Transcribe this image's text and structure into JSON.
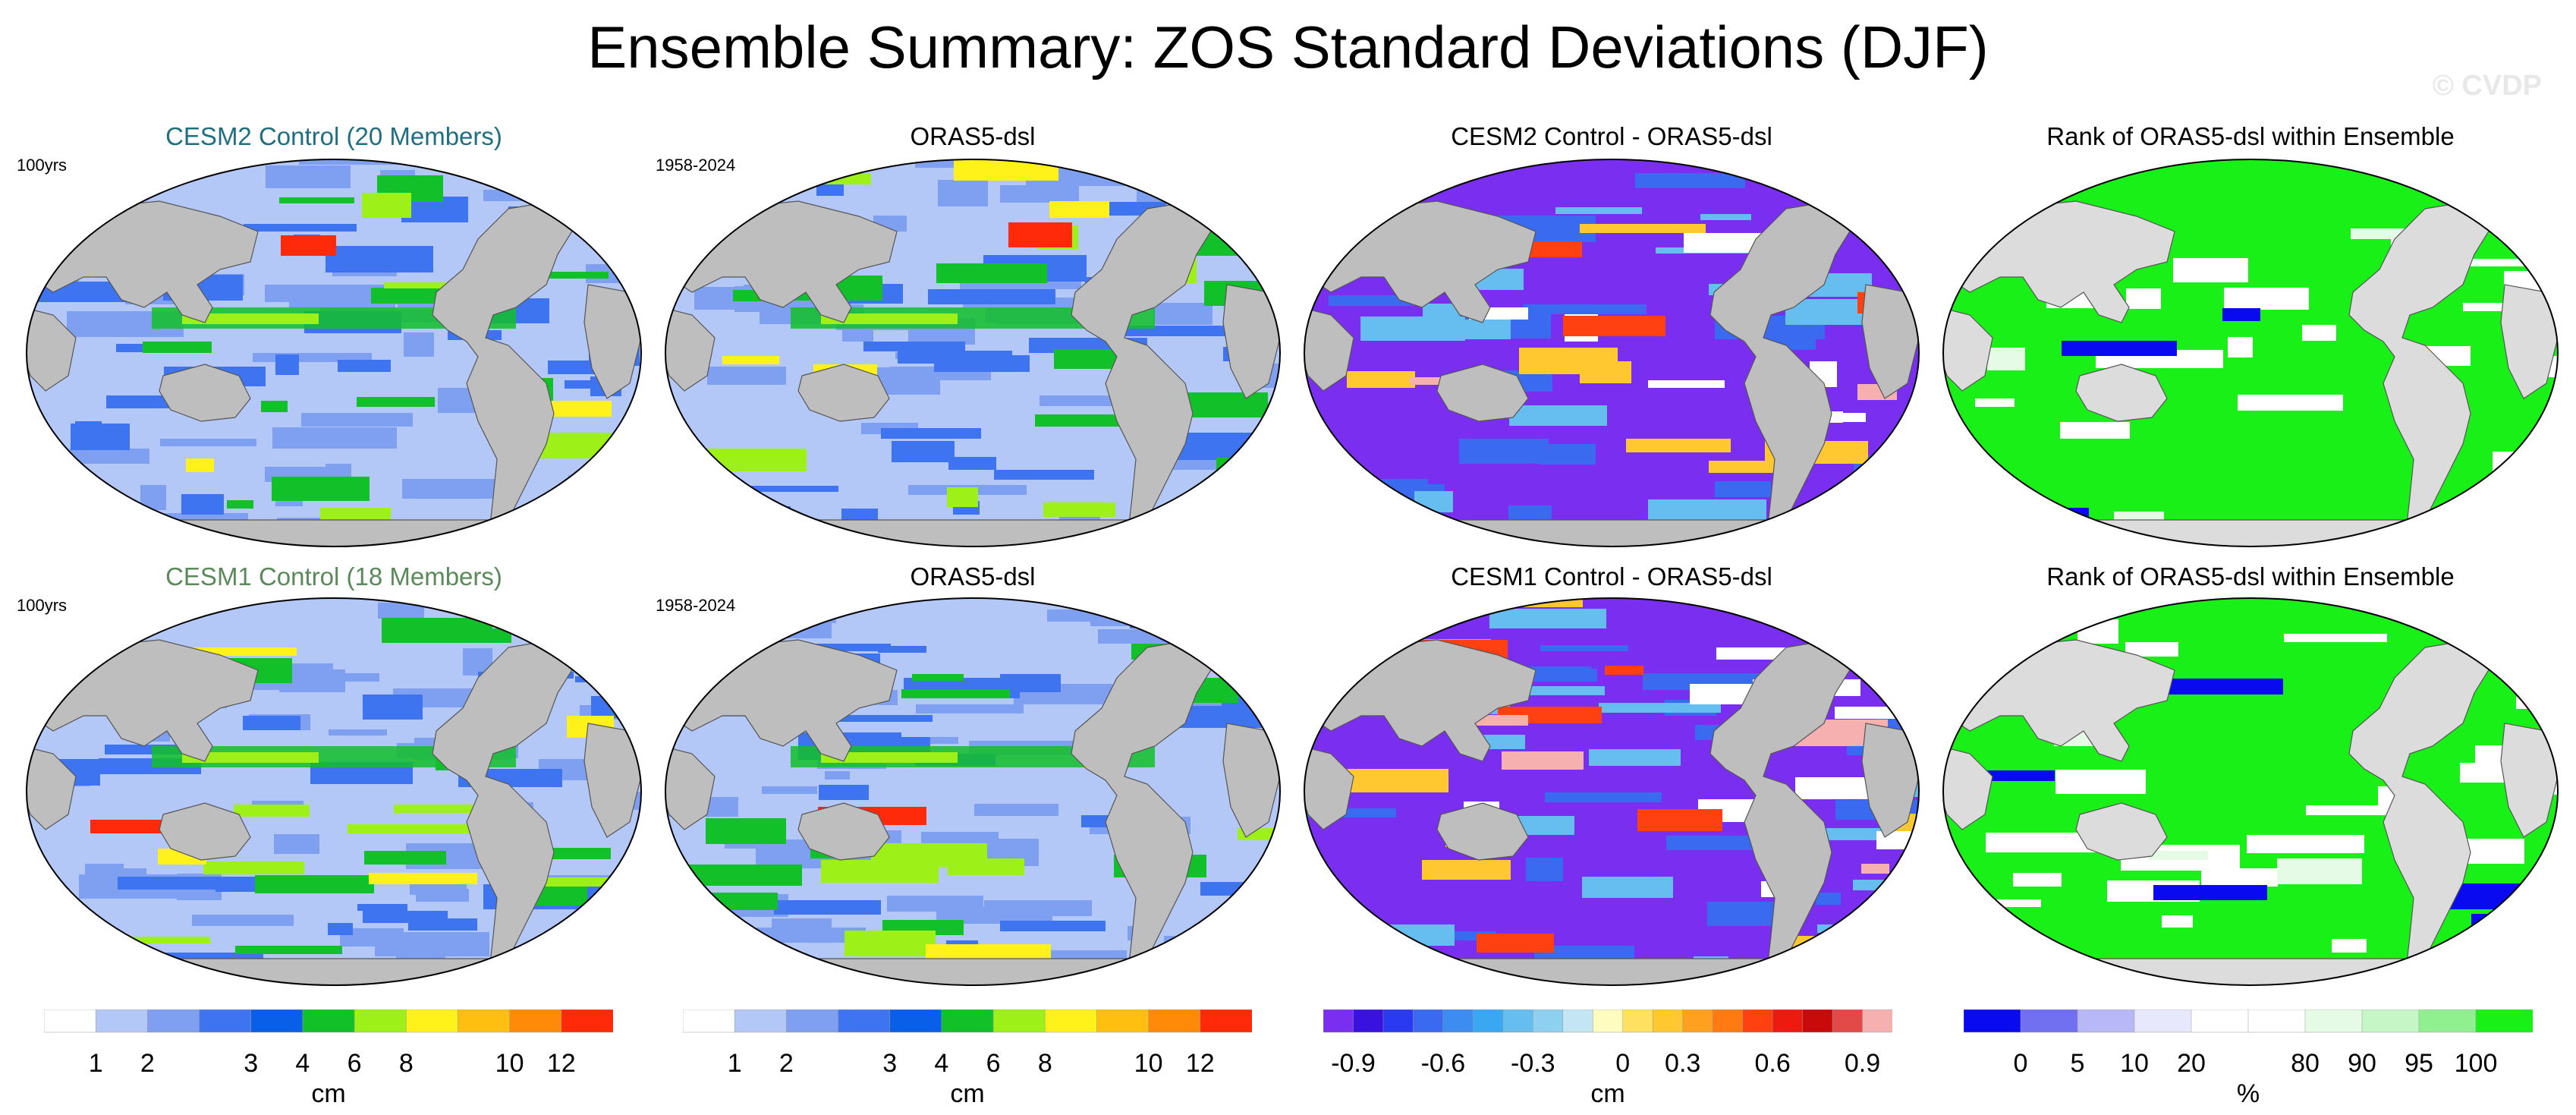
{
  "title": "Ensemble Summary: ZOS Standard Deviations (DJF)",
  "watermark": "© CVDP",
  "rows": [
    {
      "panels": [
        {
          "title": "CESM2 Control (20 Members)",
          "title_color": "#1f6f80",
          "period": "100yrs",
          "kind": "std"
        },
        {
          "title": "ORAS5-dsl",
          "title_color": "#000000",
          "period": "1958-2024",
          "kind": "std"
        },
        {
          "title": "CESM2 Control - ORAS5-dsl",
          "title_color": "#000000",
          "period": "",
          "kind": "diff"
        },
        {
          "title": "Rank of ORAS5-dsl within Ensemble",
          "title_color": "#000000",
          "period": "",
          "kind": "rank"
        }
      ]
    },
    {
      "panels": [
        {
          "title": "CESM1 Control (18 Members)",
          "title_color": "#5a8a5a",
          "period": "100yrs",
          "kind": "std"
        },
        {
          "title": "ORAS5-dsl",
          "title_color": "#000000",
          "period": "1958-2024",
          "kind": "std"
        },
        {
          "title": "CESM1 Control - ORAS5-dsl",
          "title_color": "#000000",
          "period": "",
          "kind": "diff"
        },
        {
          "title": "Rank of ORAS5-dsl within Ensemble",
          "title_color": "#000000",
          "period": "",
          "kind": "rank"
        }
      ]
    }
  ],
  "colorbars": [
    {
      "units": "cm",
      "colors": [
        "#ffffff",
        "#b4c8f8",
        "#7f9ff0",
        "#3f74f0",
        "#0a5fe8",
        "#12c02a",
        "#9df018",
        "#fff21a",
        "#ffbf10",
        "#ff8a0a",
        "#ff2a0a"
      ],
      "ticks": [
        "1",
        "2",
        "3",
        "4",
        "6",
        "8",
        "10",
        "12"
      ]
    },
    {
      "units": "cm",
      "colors": [
        "#ffffff",
        "#b4c8f8",
        "#7f9ff0",
        "#3f74f0",
        "#0a5fe8",
        "#12c02a",
        "#9df018",
        "#fff21a",
        "#ffbf10",
        "#ff8a0a",
        "#ff2a0a"
      ],
      "ticks": [
        "1",
        "2",
        "3",
        "4",
        "6",
        "8",
        "10",
        "12"
      ]
    },
    {
      "units": "cm",
      "colors": [
        "#7a2ff0",
        "#3a12e0",
        "#2a3af0",
        "#3a6af0",
        "#3d8cf0",
        "#3aa8f0",
        "#66bdf0",
        "#8ed0f0",
        "#c4e6f4",
        "#fffcc0",
        "#ffe060",
        "#ffc830",
        "#ffa020",
        "#ff7a10",
        "#ff4010",
        "#ee1a10",
        "#c80a0a",
        "#e24a4a",
        "#f6b0b0"
      ],
      "ticks": [
        "-0.9",
        "-0.6",
        "-0.3",
        "0",
        "0.3",
        "0.6",
        "0.9"
      ]
    },
    {
      "units": "%",
      "colors": [
        "#0a0af0",
        "#7070f0",
        "#b8b8f8",
        "#e8e8fc",
        "#ffffff",
        "#ffffff",
        "#e6fbe6",
        "#c6f6c6",
        "#90f090",
        "#18f018"
      ],
      "ticks": [
        "0",
        "5",
        "10",
        "20",
        "80",
        "90",
        "95",
        "100"
      ]
    }
  ]
}
